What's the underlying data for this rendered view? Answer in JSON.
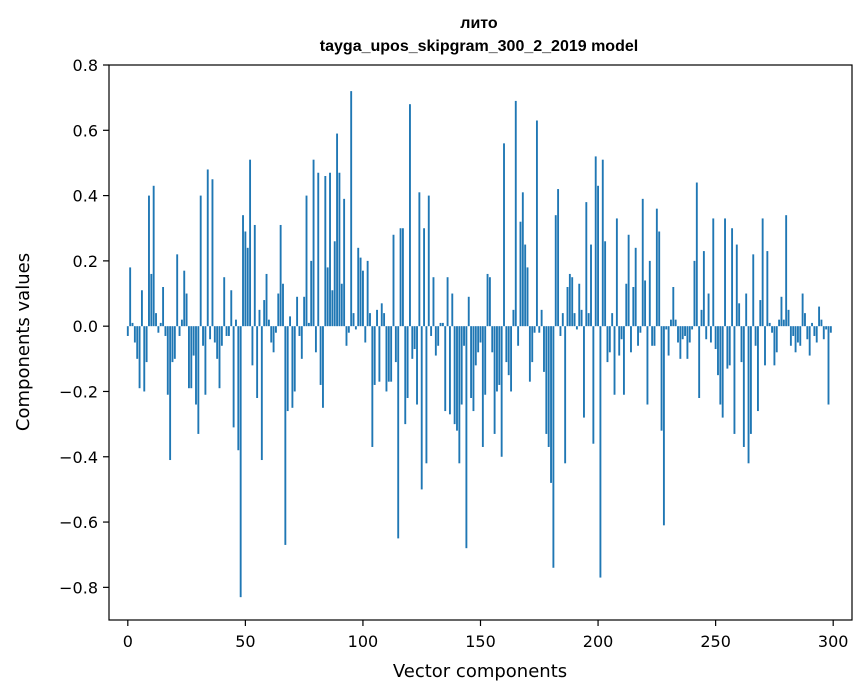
{
  "chart_data": {
    "type": "bar",
    "title_line1": "лито",
    "title_line2": "tayga_upos_skipgram_300_2_2019 model",
    "xlabel": "Vector components",
    "ylabel": "Components values",
    "xlim": [
      -8,
      308
    ],
    "ylim": [
      -0.9,
      0.8
    ],
    "xticks": [
      0,
      50,
      100,
      150,
      200,
      250,
      300
    ],
    "xtick_labels": [
      "0",
      "50",
      "100",
      "150",
      "200",
      "250",
      "300"
    ],
    "yticks": [
      0.8,
      0.6,
      0.4,
      0.2,
      0.0,
      -0.2,
      -0.4,
      -0.6,
      -0.8
    ],
    "ytick_labels": [
      "0.8",
      "0.6",
      "0.4",
      "0.2",
      "0.0",
      "−0.2",
      "−0.4",
      "−0.6",
      "−0.8"
    ],
    "bar_color": "#1f77b4",
    "values": [
      -0.03,
      0.18,
      0.01,
      -0.05,
      -0.1,
      -0.19,
      0.11,
      -0.2,
      -0.11,
      0.4,
      0.16,
      0.43,
      0.04,
      -0.02,
      0.01,
      0.12,
      -0.03,
      -0.21,
      -0.41,
      -0.11,
      -0.1,
      0.22,
      -0.03,
      0.02,
      0.17,
      0.1,
      -0.19,
      -0.19,
      -0.09,
      -0.24,
      -0.33,
      0.4,
      -0.06,
      -0.21,
      0.48,
      -0.04,
      0.45,
      -0.05,
      -0.1,
      -0.19,
      -0.06,
      0.15,
      -0.03,
      -0.03,
      0.11,
      -0.31,
      0.02,
      -0.38,
      -0.83,
      0.34,
      0.29,
      0.24,
      0.51,
      -0.12,
      0.31,
      -0.22,
      0.05,
      -0.41,
      0.08,
      0.16,
      0.02,
      -0.05,
      -0.08,
      -0.02,
      0.1,
      0.31,
      0.13,
      -0.67,
      -0.26,
      0.03,
      -0.25,
      -0.2,
      0.09,
      -0.03,
      -0.1,
      0.09,
      0.4,
      0.01,
      0.2,
      0.51,
      -0.08,
      0.47,
      -0.18,
      -0.25,
      0.46,
      0.18,
      0.47,
      0.11,
      0.26,
      0.59,
      0.47,
      0.13,
      0.39,
      -0.06,
      -0.02,
      0.72,
      0.04,
      -0.01,
      0.24,
      0.21,
      0.17,
      -0.05,
      0.2,
      0.04,
      -0.37,
      -0.18,
      0.05,
      -0.17,
      0.07,
      0.04,
      -0.2,
      -0.17,
      -0.17,
      0.28,
      -0.11,
      -0.65,
      0.3,
      0.3,
      -0.3,
      -0.22,
      0.68,
      -0.1,
      -0.07,
      -0.24,
      0.41,
      -0.5,
      0.3,
      -0.42,
      0.4,
      -0.03,
      0.15,
      -0.09,
      -0.06,
      0.01,
      0.01,
      -0.26,
      0.15,
      -0.27,
      0.1,
      -0.3,
      -0.32,
      -0.42,
      -0.24,
      -0.06,
      -0.68,
      0.09,
      -0.22,
      -0.26,
      -0.12,
      -0.08,
      -0.05,
      -0.37,
      -0.21,
      0.16,
      0.15,
      -0.08,
      -0.33,
      -0.2,
      -0.18,
      -0.4,
      0.56,
      -0.11,
      -0.15,
      -0.2,
      0.05,
      0.69,
      -0.06,
      0.32,
      0.41,
      0.25,
      0.18,
      -0.17,
      -0.11,
      -0.02,
      0.63,
      -0.02,
      0.05,
      -0.14,
      -0.33,
      -0.37,
      -0.48,
      -0.74,
      0.34,
      0.42,
      -0.03,
      0.04,
      -0.42,
      0.12,
      0.16,
      0.15,
      0.04,
      -0.01,
      0.13,
      0.05,
      -0.28,
      0.38,
      0.04,
      0.25,
      -0.36,
      0.52,
      0.43,
      -0.77,
      0.51,
      0.26,
      -0.11,
      -0.08,
      0.04,
      -0.21,
      0.33,
      -0.09,
      -0.04,
      -0.21,
      0.13,
      0.28,
      -0.08,
      0.12,
      0.24,
      -0.06,
      -0.02,
      0.39,
      0.14,
      -0.24,
      0.2,
      -0.06,
      -0.06,
      0.36,
      0.29,
      -0.32,
      -0.61,
      -0.01,
      -0.09,
      0.02,
      0.12,
      0.02,
      -0.05,
      -0.1,
      -0.04,
      -0.03,
      -0.1,
      -0.05,
      -0.01,
      0.2,
      0.44,
      -0.22,
      0.05,
      0.23,
      -0.04,
      0.1,
      -0.05,
      0.33,
      -0.07,
      -0.15,
      -0.24,
      -0.28,
      0.33,
      -0.13,
      -0.12,
      0.3,
      -0.33,
      0.25,
      0.07,
      -0.11,
      -0.37,
      0.1,
      -0.42,
      -0.33,
      0.22,
      -0.06,
      -0.26,
      0.08,
      0.33,
      -0.12,
      0.23,
      0.01,
      -0.02,
      -0.12,
      -0.08,
      0.02,
      0.09,
      0.02,
      0.34,
      0.05,
      -0.06,
      -0.03,
      -0.08,
      -0.05,
      -0.06,
      0.1,
      0.04,
      -0.04,
      -0.09,
      0.01,
      -0.03,
      -0.05,
      0.06,
      0.02,
      -0.04,
      -0.01,
      -0.24,
      -0.02
    ]
  }
}
